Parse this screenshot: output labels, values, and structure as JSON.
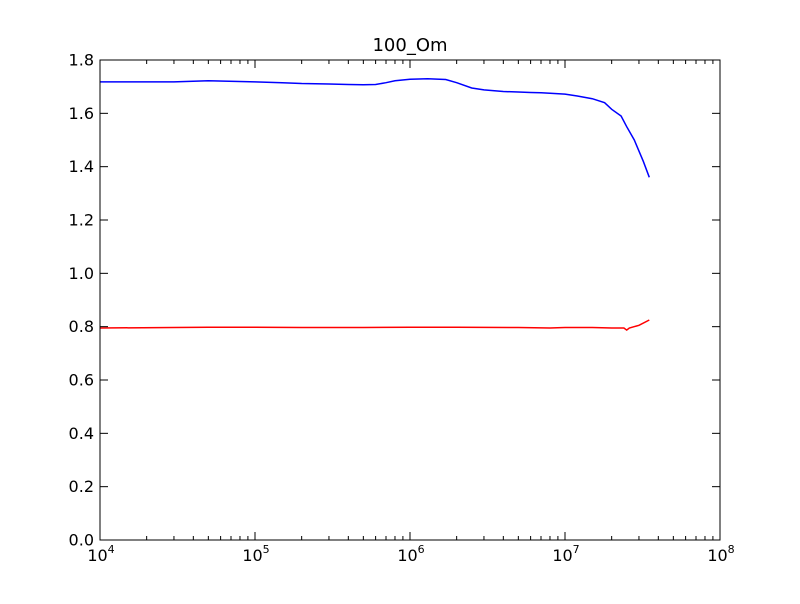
{
  "chart_data": {
    "type": "line",
    "title": "100_Om",
    "xlabel": "",
    "ylabel": "",
    "xscale": "log",
    "xlim": [
      10000,
      100000000
    ],
    "ylim": [
      0.0,
      1.8
    ],
    "grid": false,
    "x_ticks": [
      {
        "value": 10000,
        "base": "10",
        "exp": "4"
      },
      {
        "value": 100000,
        "base": "10",
        "exp": "5"
      },
      {
        "value": 1000000,
        "base": "10",
        "exp": "6"
      },
      {
        "value": 10000000,
        "base": "10",
        "exp": "7"
      },
      {
        "value": 100000000,
        "base": "10",
        "exp": "8"
      }
    ],
    "y_ticks": [
      {
        "value": 0.0,
        "label": "0.0"
      },
      {
        "value": 0.2,
        "label": "0.2"
      },
      {
        "value": 0.4,
        "label": "0.4"
      },
      {
        "value": 0.6,
        "label": "0.6"
      },
      {
        "value": 0.8,
        "label": "0.8"
      },
      {
        "value": 1.0,
        "label": "1.0"
      },
      {
        "value": 1.2,
        "label": "1.2"
      },
      {
        "value": 1.4,
        "label": "1.4"
      },
      {
        "value": 1.6,
        "label": "1.6"
      },
      {
        "value": 1.8,
        "label": "1.8"
      }
    ],
    "series": [
      {
        "color": "#0000ff",
        "x": [
          10000,
          20000,
          30000,
          50000,
          100000,
          150000,
          200000,
          300000,
          400000,
          500000,
          600000,
          700000,
          800000,
          1000000,
          1300000,
          1700000,
          2000000,
          2500000,
          3000000,
          4000000,
          5000000,
          6000000,
          7000000,
          8000000,
          10000000,
          12000000,
          15000000,
          18000000,
          20000000,
          23000000,
          25000000,
          28000000,
          32000000,
          35000000
        ],
        "y": [
          1.718,
          1.718,
          1.718,
          1.722,
          1.718,
          1.715,
          1.712,
          1.71,
          1.708,
          1.707,
          1.708,
          1.715,
          1.722,
          1.728,
          1.73,
          1.727,
          1.715,
          1.695,
          1.688,
          1.682,
          1.68,
          1.678,
          1.677,
          1.675,
          1.672,
          1.665,
          1.655,
          1.64,
          1.615,
          1.59,
          1.55,
          1.5,
          1.42,
          1.36
        ]
      },
      {
        "color": "#ff0000",
        "x": [
          10000,
          30000,
          50000,
          100000,
          200000,
          500000,
          1000000,
          2000000,
          5000000,
          8000000,
          10000000,
          15000000,
          20000000,
          24000000,
          25000000,
          26000000,
          30000000,
          35000000
        ],
        "y": [
          0.795,
          0.797,
          0.798,
          0.798,
          0.797,
          0.797,
          0.798,
          0.798,
          0.797,
          0.795,
          0.797,
          0.797,
          0.795,
          0.795,
          0.787,
          0.795,
          0.805,
          0.825
        ]
      }
    ]
  }
}
